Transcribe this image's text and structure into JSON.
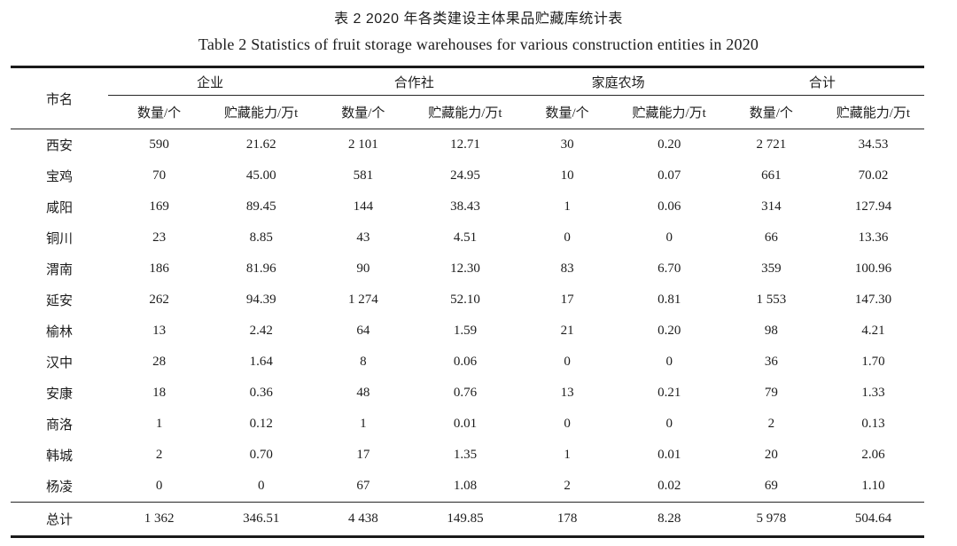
{
  "title": {
    "zh": "表 2 2020 年各类建设主体果品贮藏库统计表",
    "en": "Table 2 Statistics of fruit storage warehouses for various construction entities in 2020"
  },
  "table": {
    "row_header": "市名",
    "groups": [
      {
        "label": "企业",
        "columns": [
          "数量/个",
          "贮藏能力/万t"
        ]
      },
      {
        "label": "合作社",
        "columns": [
          "数量/个",
          "贮藏能力/万t"
        ]
      },
      {
        "label": "家庭农场",
        "columns": [
          "数量/个",
          "贮藏能力/万t"
        ]
      },
      {
        "label": "合计",
        "columns": [
          "数量/个",
          "贮藏能力/万t"
        ]
      }
    ],
    "rows": [
      {
        "city": "西安",
        "values": [
          "590",
          "21.62",
          "2 101",
          "12.71",
          "30",
          "0.20",
          "2 721",
          "34.53"
        ]
      },
      {
        "city": "宝鸡",
        "values": [
          "70",
          "45.00",
          "581",
          "24.95",
          "10",
          "0.07",
          "661",
          "70.02"
        ]
      },
      {
        "city": "咸阳",
        "values": [
          "169",
          "89.45",
          "144",
          "38.43",
          "1",
          "0.06",
          "314",
          "127.94"
        ]
      },
      {
        "city": "铜川",
        "values": [
          "23",
          "8.85",
          "43",
          "4.51",
          "0",
          "0",
          "66",
          "13.36"
        ]
      },
      {
        "city": "渭南",
        "values": [
          "186",
          "81.96",
          "90",
          "12.30",
          "83",
          "6.70",
          "359",
          "100.96"
        ]
      },
      {
        "city": "延安",
        "values": [
          "262",
          "94.39",
          "1 274",
          "52.10",
          "17",
          "0.81",
          "1 553",
          "147.30"
        ]
      },
      {
        "city": "榆林",
        "values": [
          "13",
          "2.42",
          "64",
          "1.59",
          "21",
          "0.20",
          "98",
          "4.21"
        ]
      },
      {
        "city": "汉中",
        "values": [
          "28",
          "1.64",
          "8",
          "0.06",
          "0",
          "0",
          "36",
          "1.70"
        ]
      },
      {
        "city": "安康",
        "values": [
          "18",
          "0.36",
          "48",
          "0.76",
          "13",
          "0.21",
          "79",
          "1.33"
        ]
      },
      {
        "city": "商洛",
        "values": [
          "1",
          "0.12",
          "1",
          "0.01",
          "0",
          "0",
          "2",
          "0.13"
        ]
      },
      {
        "city": "韩城",
        "values": [
          "2",
          "0.70",
          "17",
          "1.35",
          "1",
          "0.01",
          "20",
          "2.06"
        ]
      },
      {
        "city": "杨凌",
        "values": [
          "0",
          "0",
          "67",
          "1.08",
          "2",
          "0.02",
          "69",
          "1.10"
        ]
      }
    ],
    "total": {
      "label": "总计",
      "values": [
        "1 362",
        "346.51",
        "4 438",
        "149.85",
        "178",
        "8.28",
        "5 978",
        "504.64"
      ]
    }
  },
  "chart_data": {
    "type": "table",
    "title": "表 2 2020 年各类建设主体果品贮藏库统计表",
    "subtitle": "Table 2 Statistics of fruit storage warehouses for various construction entities in 2020",
    "columns": [
      "市名",
      "企业 数量/个",
      "企业 贮藏能力/万t",
      "合作社 数量/个",
      "合作社 贮藏能力/万t",
      "家庭农场 数量/个",
      "家庭农场 贮藏能力/万t",
      "合计 数量/个",
      "合计 贮藏能力/万t"
    ],
    "rows": [
      [
        "西安",
        590,
        21.62,
        2101,
        12.71,
        30,
        0.2,
        2721,
        34.53
      ],
      [
        "宝鸡",
        70,
        45.0,
        581,
        24.95,
        10,
        0.07,
        661,
        70.02
      ],
      [
        "咸阳",
        169,
        89.45,
        144,
        38.43,
        1,
        0.06,
        314,
        127.94
      ],
      [
        "铜川",
        23,
        8.85,
        43,
        4.51,
        0,
        0,
        66,
        13.36
      ],
      [
        "渭南",
        186,
        81.96,
        90,
        12.3,
        83,
        6.7,
        359,
        100.96
      ],
      [
        "延安",
        262,
        94.39,
        1274,
        52.1,
        17,
        0.81,
        1553,
        147.3
      ],
      [
        "榆林",
        13,
        2.42,
        64,
        1.59,
        21,
        0.2,
        98,
        4.21
      ],
      [
        "汉中",
        28,
        1.64,
        8,
        0.06,
        0,
        0,
        36,
        1.7
      ],
      [
        "安康",
        18,
        0.36,
        48,
        0.76,
        13,
        0.21,
        79,
        1.33
      ],
      [
        "商洛",
        1,
        0.12,
        1,
        0.01,
        0,
        0,
        2,
        0.13
      ],
      [
        "韩城",
        2,
        0.7,
        17,
        1.35,
        1,
        0.01,
        20,
        2.06
      ],
      [
        "杨凌",
        0,
        0,
        67,
        1.08,
        2,
        0.02,
        69,
        1.1
      ],
      [
        "总计",
        1362,
        346.51,
        4438,
        149.85,
        178,
        8.28,
        5978,
        504.64
      ]
    ]
  }
}
